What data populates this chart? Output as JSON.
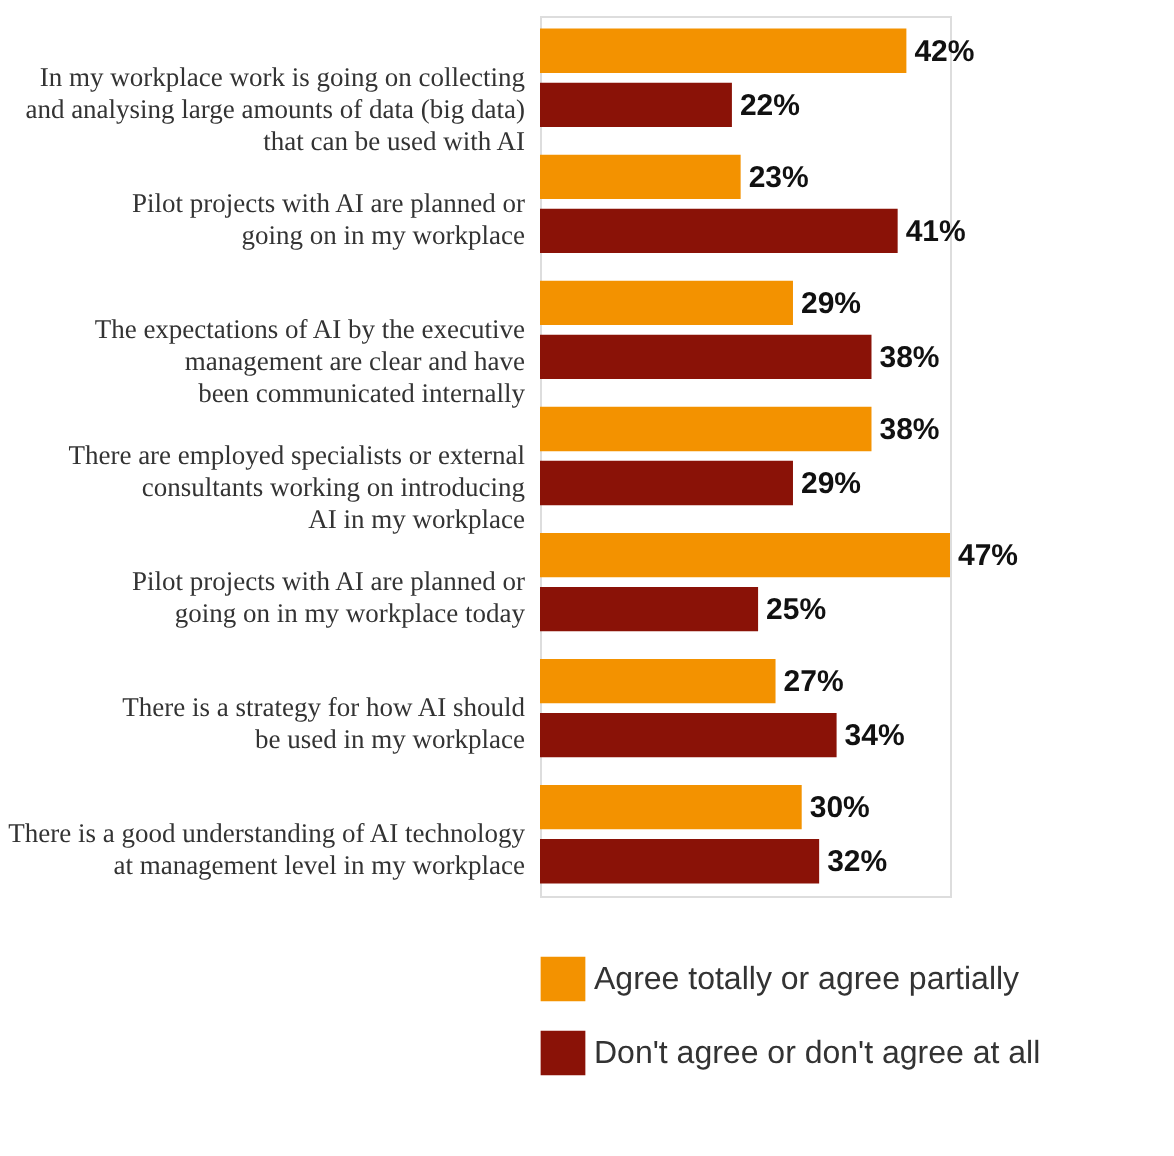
{
  "chart_data": {
    "type": "bar",
    "orientation": "horizontal",
    "legend": "bottom",
    "categories": [
      "In my workplace work is going on collecting\nand analysing large amounts of data (big data)\nthat can be used with AI",
      "Pilot projects with AI are planned or\ngoing on in my workplace",
      "The expectations of AI by the executive\nmanagement are clear and have\nbeen communicated internally",
      "There are employed specialists or external\nconsultants working on introducing\nAI in my workplace",
      "Pilot projects with AI are planned or\ngoing on in my workplace today",
      "There is a strategy for how AI should\nbe used in my workplace",
      "There is a good understanding of AI technology\nat management level in my workplace"
    ],
    "series": [
      {
        "name": "Agree totally or agree partially",
        "color": "#f39200",
        "values": [
          42,
          23,
          29,
          38,
          47,
          27,
          30
        ],
        "value_labels": [
          "42%",
          "23%",
          "29%",
          "38%",
          "47%",
          "27%",
          "30%"
        ]
      },
      {
        "name": "Don't agree or don't agree at all",
        "color": "#8a1207",
        "values": [
          22,
          41,
          38,
          29,
          25,
          34,
          32
        ],
        "value_labels": [
          "22%",
          "41%",
          "38%",
          "29%",
          "25%",
          "34%",
          "32%"
        ]
      }
    ]
  }
}
